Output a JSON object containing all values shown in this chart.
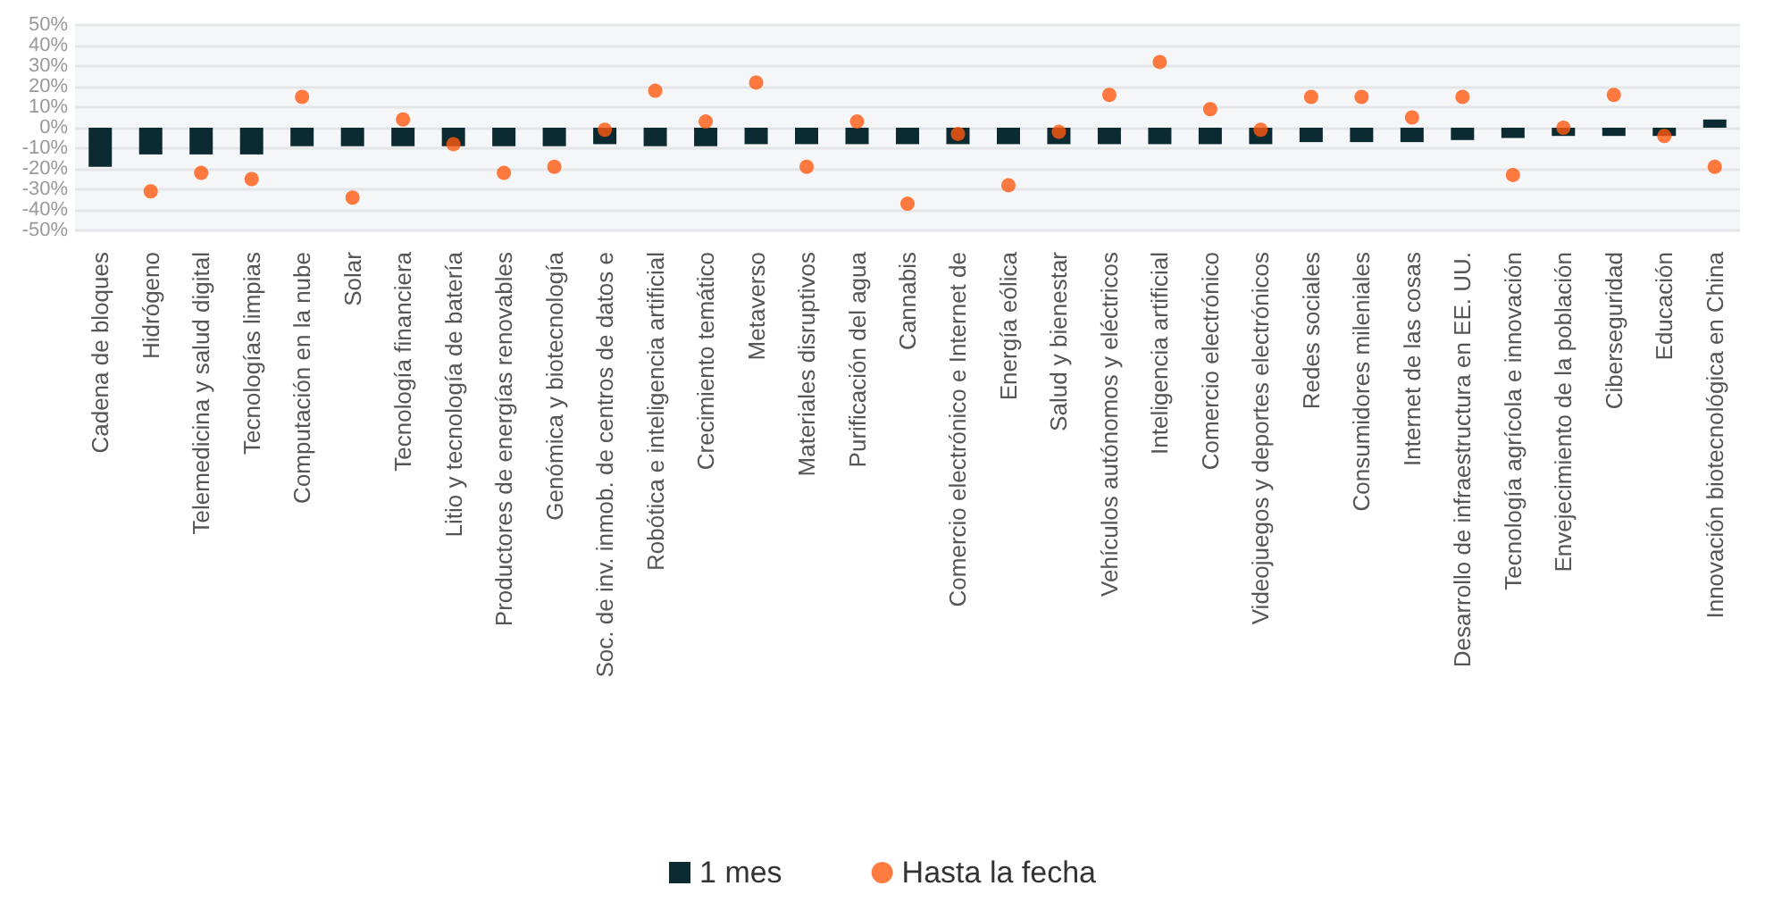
{
  "chart_data": {
    "type": "bar",
    "categories": [
      "Cadena de bloques",
      "Hidrógeno",
      "Telemedicina y salud digital",
      "Tecnologías limpias",
      "Computación en la nube",
      "Solar",
      "Tecnología financiera",
      "Litio y tecnología de batería",
      "Productores de energías renovables",
      "Genómica y biotecnología",
      "Soc. de inv. inmob. de centros de datos e",
      "Robótica e inteligencia artificial",
      "Crecimiento temático",
      "Metaverso",
      "Materiales disruptivos",
      "Purificación del agua",
      "Cannabis",
      "Comercio electrónico e Internet de",
      "Energía eólica",
      "Salud y bienestar",
      "Vehículos autónomos y eléctricos",
      "Inteligencia artificial",
      "Comercio electrónico",
      "Videojuegos y deportes electrónicos",
      "Redes sociales",
      "Consumidores mileniales",
      "Internet de las cosas",
      "Desarrollo de infraestructura en EE. UU.",
      "Tecnología agrícola e innovación",
      "Envejecimiento de la población",
      "Ciberseguridad",
      "Educación",
      "Innovación biotecnológica en China"
    ],
    "series": [
      {
        "name": "1 mes",
        "color": "#0b2a32",
        "values": [
          -19,
          -13,
          -13,
          -13,
          -9,
          -9,
          -9,
          -9,
          -9,
          -9,
          -8,
          -9,
          -9,
          -8,
          -8,
          -8,
          -8,
          -8,
          -8,
          -8,
          -8,
          -8,
          -8,
          -8,
          -7,
          -7,
          -7,
          -6,
          -5,
          -4,
          -4,
          -4,
          4
        ]
      },
      {
        "name": "Hasta la fecha",
        "type": "scatter",
        "color": "#ff5a10",
        "values": [
          null,
          -31,
          -22,
          -25,
          15,
          -34,
          4,
          -8,
          -22,
          -19,
          -1,
          18,
          3,
          22,
          -19,
          3,
          -37,
          -3,
          -28,
          -2,
          16,
          32,
          9,
          -1,
          15,
          15,
          5,
          15,
          -23,
          0,
          16,
          -4,
          -19
        ]
      }
    ],
    "ylim": [
      -50,
      50
    ],
    "yticks": [
      {
        "value": -50,
        "label": "-50%"
      },
      {
        "value": -40,
        "label": "-40%"
      },
      {
        "value": -30,
        "label": "-30%"
      },
      {
        "value": -20,
        "label": "-20%"
      },
      {
        "value": -10,
        "label": "-10%"
      },
      {
        "value": 0,
        "label": "0%"
      },
      {
        "value": 10,
        "label": "10%"
      },
      {
        "value": 20,
        "label": "20%"
      },
      {
        "value": 30,
        "label": "30%"
      },
      {
        "value": 40,
        "label": "40%"
      },
      {
        "value": 50,
        "label": "50%"
      }
    ],
    "grid": "y",
    "legend": "bottom",
    "marker": "circle"
  }
}
